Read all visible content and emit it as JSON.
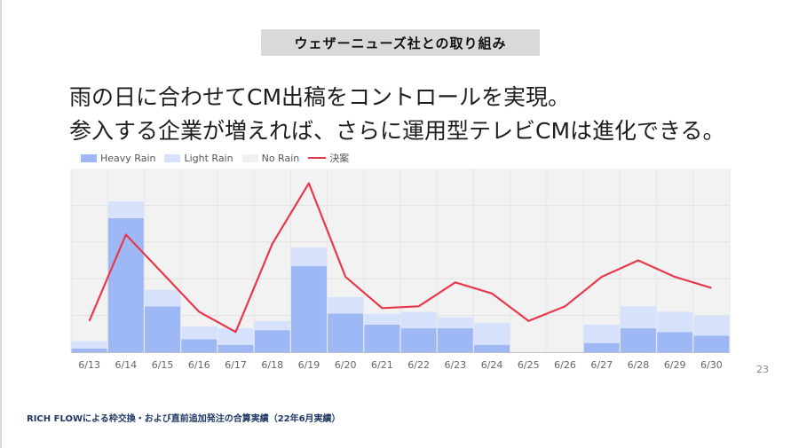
{
  "slide": {
    "section_title": "ウェザーニューズ社との取り組み",
    "headline_line1": "雨の日に合わせてCM出稿をコントロールを実現。",
    "headline_line2": "参入する企業が増えれば、さらに運用型テレビCMは進化できる。",
    "page_number": "23",
    "footnote": "RICH FLOWによる枠交換・および直前追加発注の合算実績（22年6月実績）"
  },
  "colors": {
    "heavy_rain": "#9db8f5",
    "light_rain": "#d6e2fc",
    "no_rain": "#f0f0f0",
    "decision_line": "#e8394a",
    "plot_background": "#f2f2f2"
  },
  "chart_data": {
    "type": "bar",
    "stacked": true,
    "title": "",
    "xlabel": "",
    "ylabel": "",
    "y_axis_visible": false,
    "ylim": [
      0,
      100
    ],
    "grid": true,
    "legend_position": "top-left",
    "categories": [
      "6/13",
      "6/14",
      "6/15",
      "6/16",
      "6/17",
      "6/18",
      "6/19",
      "6/20",
      "6/21",
      "6/22",
      "6/23",
      "6/24",
      "6/25",
      "6/26",
      "6/27",
      "6/28",
      "6/29",
      "6/30"
    ],
    "series": [
      {
        "name": "Heavy Rain",
        "kind": "bar",
        "values": [
          2,
          73,
          25,
          7,
          4,
          12,
          47,
          21,
          15,
          13,
          13,
          4,
          0,
          0,
          5,
          13,
          11,
          9
        ]
      },
      {
        "name": "Light Rain",
        "kind": "bar",
        "values": [
          4,
          9,
          9,
          7,
          9,
          5,
          10,
          9,
          6,
          9,
          6,
          12,
          0,
          0,
          10,
          12,
          11,
          11
        ]
      },
      {
        "name": "No Rain",
        "kind": "bar",
        "values": [
          0,
          0,
          0,
          0,
          0,
          0,
          0,
          0,
          0,
          0,
          0,
          0,
          0,
          0,
          0,
          0,
          0,
          0
        ]
      },
      {
        "name": "決案",
        "kind": "line",
        "values": [
          17,
          64,
          43,
          22,
          11,
          59,
          92,
          41,
          24,
          25,
          38,
          32,
          17,
          25,
          41,
          50,
          41,
          35
        ]
      }
    ]
  }
}
